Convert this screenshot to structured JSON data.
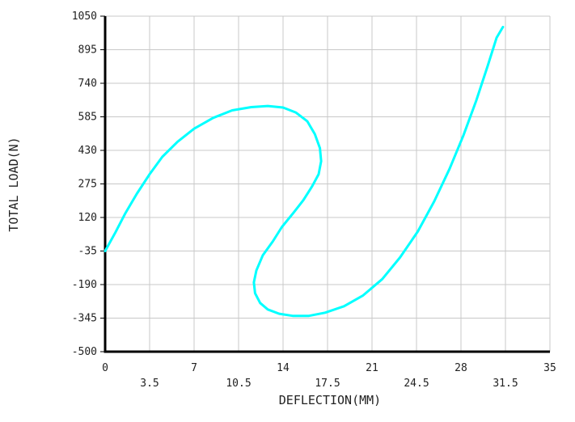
{
  "chart_data": {
    "type": "line",
    "title": "",
    "xlabel": "DEFLECTION(MM)",
    "ylabel": "TOTAL LOAD(N)",
    "xlim": [
      0,
      35
    ],
    "ylim": [
      -500,
      1050
    ],
    "x_ticks_row1": [
      "0",
      "7",
      "14",
      "21",
      "28",
      "35"
    ],
    "x_ticks_row2": [
      "3.5",
      "10.5",
      "17.5",
      "24.5",
      "31.5"
    ],
    "y_ticks": [
      "1050",
      "895",
      "740",
      "585",
      "430",
      "275",
      "120",
      "-35",
      "-190",
      "-345",
      "-500"
    ],
    "grid": true,
    "series": [
      {
        "color": "#00ffff",
        "x": [
          0,
          0.8,
          1.6,
          2.5,
          3.5,
          4.5,
          5.7,
          7.0,
          8.5,
          10.0,
          11.5,
          12.8,
          14.0,
          15.0,
          15.9,
          16.5,
          16.9,
          17.0,
          16.8,
          16.3,
          15.6,
          14.8,
          13.9,
          13.2,
          12.4,
          11.9,
          11.7,
          11.8,
          12.2,
          12.8,
          13.7,
          14.8,
          16.0,
          17.3,
          18.8,
          20.3,
          21.8,
          23.2,
          24.6,
          25.9,
          27.1,
          28.2,
          29.2,
          30.1,
          30.8,
          31.3
        ],
        "y": [
          -35,
          50,
          140,
          230,
          320,
          400,
          470,
          530,
          580,
          615,
          630,
          635,
          628,
          605,
          565,
          505,
          440,
          380,
          320,
          265,
          200,
          140,
          75,
          10,
          -55,
          -125,
          -180,
          -230,
          -275,
          -305,
          -325,
          -335,
          -335,
          -320,
          -290,
          -240,
          -165,
          -65,
          55,
          195,
          345,
          500,
          660,
          820,
          950,
          1000
        ]
      }
    ]
  }
}
